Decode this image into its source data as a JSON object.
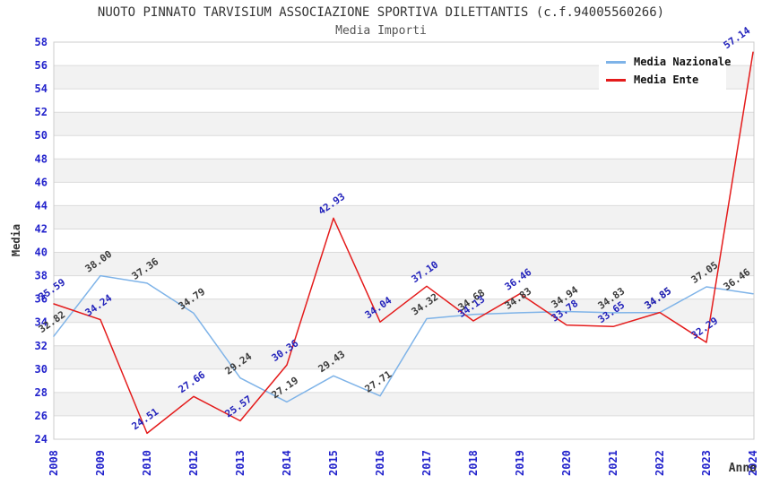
{
  "chart_data": {
    "type": "line",
    "title": "NUOTO PINNATO TARVISIUM ASSOCIAZIONE SPORTIVA DILETTANTIS (c.f.94005560266)",
    "subtitle": "Media Importi",
    "xlabel": "Anno",
    "ylabel": "Media",
    "ylim": [
      24,
      58
    ],
    "ytick_step": 2,
    "grid": true,
    "legend_position": "top-right",
    "categories": [
      "2008",
      "2009",
      "2010",
      "2012",
      "2013",
      "2014",
      "2015",
      "2016",
      "2017",
      "2018",
      "2019",
      "2020",
      "2021",
      "2022",
      "2023",
      "2024"
    ],
    "series": [
      {
        "name": "Media Nazionale",
        "color": "#7EB3E8",
        "label_color": "#3A3A3A",
        "values": [
          32.82,
          38.0,
          37.36,
          34.79,
          29.24,
          27.19,
          29.43,
          27.71,
          34.32,
          34.68,
          34.83,
          34.94,
          34.83,
          34.85,
          37.05,
          36.46
        ]
      },
      {
        "name": "Media Ente",
        "color": "#E41B1B",
        "label_color": "#2222BB",
        "values": [
          35.59,
          34.24,
          24.51,
          27.66,
          25.57,
          30.36,
          42.93,
          34.04,
          37.1,
          34.13,
          36.46,
          33.78,
          33.65,
          34.85,
          32.29,
          57.14
        ]
      }
    ],
    "colors": {
      "axis_tick": "#2222CC",
      "band": "#F2F2F2",
      "gridline": "#DBDBDB",
      "plot_border": "#CCCCCC"
    }
  }
}
